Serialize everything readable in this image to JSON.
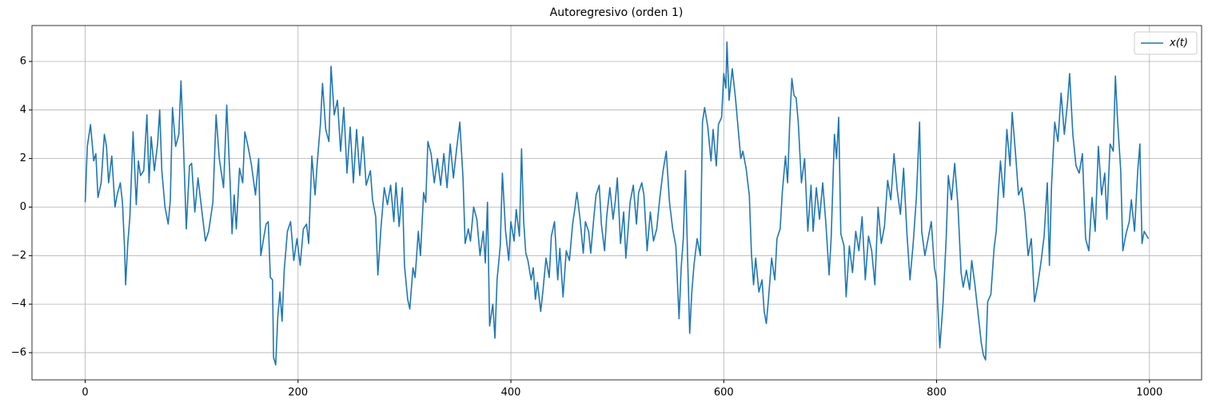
{
  "chart_data": {
    "type": "line",
    "title": "Autoregresivo (orden 1)",
    "x": [
      0,
      2,
      5,
      8,
      10,
      12,
      15,
      18,
      20,
      22,
      25,
      28,
      30,
      33,
      35,
      37,
      38,
      40,
      42,
      45,
      48,
      50,
      52,
      55,
      58,
      60,
      62,
      65,
      68,
      70,
      72,
      75,
      78,
      80,
      82,
      85,
      88,
      90,
      92,
      95,
      98,
      100,
      103,
      106,
      110,
      113,
      116,
      120,
      123,
      126,
      128,
      130,
      133,
      136,
      138,
      140,
      142,
      145,
      148,
      150,
      153,
      156,
      160,
      163,
      165,
      168,
      170,
      172,
      174,
      176,
      177,
      179,
      181,
      183,
      185,
      187,
      190,
      193,
      196,
      199,
      202,
      205,
      208,
      210,
      213,
      216,
      218,
      221,
      223,
      226,
      229,
      231,
      234,
      237,
      240,
      243,
      246,
      249,
      252,
      255,
      258,
      261,
      264,
      268,
      270,
      273,
      275,
      278,
      281,
      284,
      287,
      290,
      292,
      295,
      298,
      300,
      303,
      305,
      308,
      310,
      313,
      315,
      318,
      320,
      322,
      325,
      328,
      331,
      334,
      337,
      340,
      343,
      346,
      349,
      352,
      355,
      357,
      360,
      362,
      365,
      368,
      371,
      374,
      376,
      378,
      380,
      383,
      385,
      387,
      390,
      392,
      395,
      398,
      400,
      403,
      405,
      408,
      410,
      412,
      414,
      416,
      419,
      421,
      423,
      425,
      428,
      430,
      433,
      436,
      438,
      441,
      444,
      446,
      449,
      452,
      455,
      458,
      460,
      462,
      465,
      468,
      470,
      473,
      475,
      478,
      480,
      483,
      485,
      488,
      490,
      493,
      496,
      498,
      500,
      503,
      506,
      508,
      510,
      512,
      515,
      518,
      520,
      523,
      525,
      528,
      531,
      534,
      537,
      540,
      543,
      546,
      549,
      552,
      555,
      558,
      560,
      562,
      564,
      566,
      568,
      570,
      572,
      575,
      578,
      580,
      582,
      585,
      588,
      590,
      593,
      595,
      598,
      600,
      602,
      603,
      605,
      608,
      611,
      614,
      616,
      618,
      621,
      624,
      626,
      628,
      630,
      633,
      636,
      638,
      640,
      642,
      645,
      648,
      650,
      653,
      655,
      658,
      660,
      662,
      664,
      666,
      668,
      670,
      673,
      676,
      679,
      682,
      684,
      687,
      690,
      693,
      696,
      699,
      701,
      704,
      706,
      708,
      710,
      713,
      715,
      718,
      721,
      724,
      727,
      730,
      733,
      736,
      739,
      742,
      745,
      748,
      751,
      754,
      757,
      760,
      763,
      766,
      769,
      772,
      775,
      778,
      781,
      784,
      786,
      789,
      792,
      795,
      798,
      800,
      803,
      806,
      809,
      811,
      814,
      817,
      820,
      823,
      825,
      828,
      831,
      833,
      836,
      839,
      842,
      844,
      846,
      848,
      851,
      854,
      856,
      858,
      860,
      863,
      866,
      869,
      871,
      874,
      877,
      880,
      883,
      886,
      889,
      892,
      895,
      898,
      901,
      904,
      906,
      908,
      911,
      914,
      917,
      920,
      923,
      925,
      928,
      931,
      934,
      937,
      940,
      943,
      946,
      949,
      952,
      955,
      958,
      960,
      963,
      966,
      968,
      970,
      973,
      975,
      978,
      981,
      983,
      986,
      989,
      991,
      993,
      995,
      999
    ],
    "series": [
      {
        "name": "x(t)",
        "color": "#1f77b4",
        "values": [
          0.2,
          2.5,
          3.4,
          1.9,
          2.2,
          0.4,
          1.0,
          3.0,
          2.5,
          1.0,
          2.1,
          0.0,
          0.5,
          1.0,
          0.2,
          -1.7,
          -3.2,
          -1.5,
          -0.4,
          3.1,
          0.1,
          1.9,
          1.3,
          1.5,
          3.8,
          1.0,
          2.9,
          1.5,
          2.6,
          4.0,
          1.5,
          0.0,
          -0.7,
          0.3,
          4.1,
          2.5,
          3.0,
          5.2,
          3.0,
          -0.9,
          1.7,
          1.8,
          -0.2,
          1.2,
          -0.3,
          -1.4,
          -1.0,
          0.2,
          3.8,
          2.0,
          1.4,
          0.8,
          4.2,
          1.2,
          -1.1,
          0.5,
          -0.9,
          1.6,
          1.0,
          3.1,
          2.5,
          1.8,
          0.5,
          2.0,
          -2.0,
          -1.2,
          -0.7,
          -0.6,
          -2.9,
          -3.0,
          -6.2,
          -6.5,
          -4.5,
          -3.5,
          -4.7,
          -2.6,
          -1.0,
          -0.6,
          -2.2,
          -1.3,
          -2.4,
          -0.9,
          -0.7,
          -1.5,
          2.1,
          0.5,
          1.8,
          3.4,
          5.1,
          3.2,
          2.7,
          5.8,
          3.8,
          4.4,
          2.3,
          4.1,
          1.4,
          3.3,
          1.0,
          3.2,
          1.3,
          2.9,
          0.9,
          1.5,
          0.3,
          -0.4,
          -2.8,
          -0.8,
          0.8,
          0.1,
          0.9,
          -0.6,
          1.0,
          -0.8,
          0.8,
          -2.4,
          -3.8,
          -4.2,
          -2.5,
          -2.9,
          -1.0,
          -2.0,
          0.6,
          0.2,
          2.7,
          2.2,
          1.0,
          2.0,
          0.9,
          2.2,
          0.8,
          2.6,
          1.2,
          2.4,
          3.5,
          1.2,
          -1.5,
          -0.9,
          -1.4,
          0.0,
          -0.5,
          -2.0,
          -1.0,
          -2.3,
          0.2,
          -4.9,
          -4.0,
          -5.4,
          -3.0,
          -1.6,
          1.4,
          -1.0,
          -2.2,
          -0.6,
          -1.4,
          -0.1,
          -1.2,
          2.4,
          -0.6,
          -1.9,
          -2.2,
          -3.0,
          -2.5,
          -3.8,
          -3.1,
          -4.3,
          -3.5,
          -2.1,
          -2.9,
          -1.2,
          -0.6,
          -3.0,
          -1.7,
          -3.7,
          -1.8,
          -2.2,
          -0.7,
          -0.1,
          0.6,
          -0.5,
          -1.9,
          -0.6,
          -1.0,
          -1.9,
          -0.4,
          0.5,
          0.9,
          -0.7,
          -1.8,
          -0.4,
          0.8,
          -0.5,
          0.2,
          1.2,
          -1.5,
          -0.2,
          -2.1,
          -1.0,
          0.2,
          0.9,
          -0.7,
          0.6,
          1.0,
          0.5,
          -1.8,
          -0.2,
          -1.4,
          -0.9,
          0.4,
          1.5,
          2.3,
          0.2,
          -0.9,
          -1.6,
          -4.6,
          -2.5,
          -1.3,
          1.5,
          -2.0,
          -5.2,
          -3.5,
          -2.4,
          -1.3,
          -2.0,
          3.5,
          4.1,
          3.3,
          1.9,
          3.2,
          1.7,
          3.4,
          3.7,
          5.5,
          4.9,
          6.8,
          4.4,
          5.7,
          4.5,
          3.0,
          2.0,
          2.3,
          1.6,
          0.5,
          -1.9,
          -3.2,
          -2.1,
          -3.5,
          -3.0,
          -4.3,
          -4.8,
          -3.8,
          -2.1,
          -3.0,
          -1.3,
          -0.9,
          0.6,
          2.1,
          1.0,
          3.5,
          5.3,
          4.6,
          4.5,
          3.5,
          1.0,
          2.0,
          -1.0,
          0.9,
          -1.0,
          0.8,
          -0.5,
          1.0,
          -0.7,
          -2.8,
          -1.2,
          3.0,
          2.0,
          3.7,
          -1.1,
          -1.6,
          -3.7,
          -1.6,
          -2.7,
          -1.0,
          -1.8,
          -0.4,
          -3.0,
          -1.2,
          -1.8,
          -3.2,
          0.0,
          -1.5,
          -0.8,
          1.1,
          0.3,
          2.2,
          0.7,
          -0.3,
          1.6,
          -1.0,
          -3.0,
          -1.5,
          0.4,
          3.5,
          -1.0,
          -2.0,
          -1.3,
          -0.6,
          -2.5,
          -3.0,
          -5.8,
          -4.0,
          -1.3,
          1.3,
          0.3,
          1.8,
          0.1,
          -2.7,
          -3.3,
          -2.6,
          -3.4,
          -2.2,
          -3.2,
          -4.4,
          -5.6,
          -6.1,
          -6.3,
          -3.9,
          -3.6,
          -1.7,
          -1.0,
          0.6,
          1.9,
          0.4,
          3.2,
          1.7,
          3.9,
          2.3,
          0.5,
          0.8,
          -0.3,
          -2.0,
          -1.3,
          -3.9,
          -3.2,
          -2.3,
          -1.2,
          1.0,
          -2.4,
          0.9,
          3.5,
          2.7,
          4.7,
          3.0,
          4.3,
          5.5,
          3.0,
          1.7,
          1.4,
          2.2,
          -1.3,
          -1.8,
          0.4,
          -1.0,
          2.5,
          0.5,
          1.4,
          -0.5,
          2.6,
          2.3,
          5.4,
          3.6,
          1.5,
          -1.8,
          -1.1,
          -0.6,
          0.3,
          -1.0,
          1.5,
          2.6,
          -1.5,
          -1.0,
          -1.3
        ]
      }
    ],
    "xlim": [
      -50,
      1049
    ],
    "ylim": [
      -7.12,
      7.48
    ],
    "xticks": [
      0,
      200,
      400,
      600,
      800,
      1000
    ],
    "yticks": [
      {
        "value": -6,
        "label": "−6"
      },
      {
        "value": -4,
        "label": "−4"
      },
      {
        "value": -2,
        "label": "−2"
      },
      0,
      2,
      4,
      6
    ],
    "grid": true,
    "legend": "upper right"
  }
}
